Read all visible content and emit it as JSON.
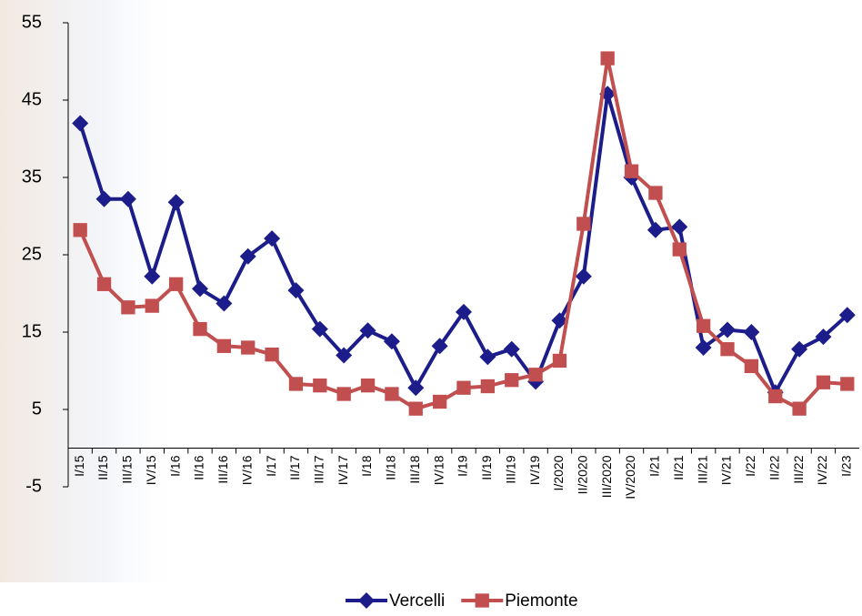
{
  "chart_data": {
    "type": "line",
    "categories": [
      "I/15",
      "II/15",
      "III/15",
      "IV/15",
      "I/16",
      "II/16",
      "III/16",
      "IV/16",
      "I/17",
      "II/17",
      "III/17",
      "IV/17",
      "I/18",
      "II/18",
      "III/18",
      "IV/18",
      "I/19",
      "II/19",
      "III/19",
      "IV/19",
      "I/2020",
      "II/2020",
      "III/2020",
      "IV/2020",
      "I/21",
      "II/21",
      "III/21",
      "IV/21",
      "I/22",
      "II/22",
      "III/22",
      "IV/22",
      "I/23"
    ],
    "series": [
      {
        "name": "Vercelli",
        "color": "#1c1c8a",
        "marker": "diamond",
        "values": [
          42,
          32.2,
          32.2,
          22.2,
          31.8,
          20.6,
          18.7,
          24.8,
          27.1,
          20.4,
          15.4,
          12,
          15.2,
          13.8,
          7.8,
          13.2,
          17.6,
          11.8,
          12.8,
          8.6,
          16.5,
          22.2,
          45.8,
          35,
          28.2,
          28.6,
          13,
          15.3,
          15,
          7.2,
          12.8,
          14.4,
          17.2
        ]
      },
      {
        "name": "Piemonte",
        "color": "#c24f4f",
        "marker": "square",
        "values": [
          28.2,
          21.2,
          18.2,
          18.4,
          21.2,
          15.4,
          13.2,
          13,
          12.1,
          8.3,
          8.1,
          7,
          8.1,
          7,
          5.1,
          6,
          7.8,
          8,
          8.8,
          9.5,
          11.3,
          29,
          50.4,
          35.8,
          33,
          25.7,
          15.8,
          12.8,
          10.6,
          6.7,
          5.1,
          8.5,
          8.3
        ]
      }
    ],
    "ylim": [
      -5,
      55
    ],
    "yticks": [
      -5,
      5,
      15,
      25,
      35,
      45,
      55
    ],
    "grid": false,
    "legend": "bottom"
  }
}
